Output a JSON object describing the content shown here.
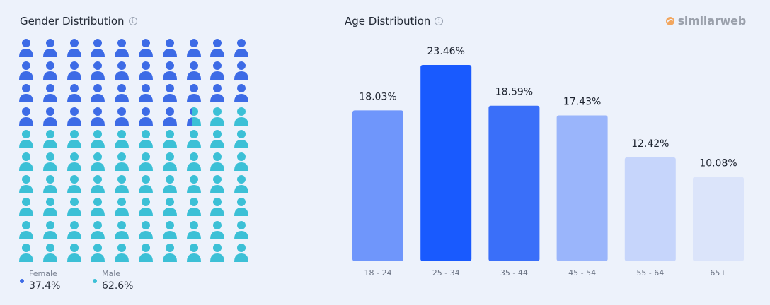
{
  "gender": {
    "title": "Gender Distribution",
    "info_icon": "info-icon",
    "legend": [
      {
        "label": "Female",
        "value": "37.4%",
        "color": "#3d6be6"
      },
      {
        "label": "Male",
        "value": "62.6%",
        "color": "#3cc0d6"
      }
    ]
  },
  "age": {
    "title": "Age Distribution",
    "info_icon": "info-icon"
  },
  "brand": {
    "name": "similarweb",
    "logo_icon": "similarweb-logo-icon"
  },
  "chart_data": [
    {
      "type": "pictogram",
      "title": "Gender Distribution",
      "icon": "person-icon",
      "icons_total": 100,
      "columns": 10,
      "series": [
        {
          "name": "Female",
          "value": 37.4,
          "color": "#3d6be6"
        },
        {
          "name": "Male",
          "value": 62.6,
          "color": "#3cc0d6"
        }
      ]
    },
    {
      "type": "bar",
      "title": "Age Distribution",
      "categories": [
        "18 - 24",
        "25 - 34",
        "35 - 44",
        "45 - 54",
        "55 - 64",
        "65+"
      ],
      "values": [
        18.03,
        23.46,
        18.59,
        17.43,
        12.42,
        10.08
      ],
      "labels": [
        "18.03%",
        "23.46%",
        "18.59%",
        "17.43%",
        "12.42%",
        "10.08%"
      ],
      "colors": [
        "#6f96fb",
        "#195afe",
        "#3a6ff9",
        "#9ab5fb",
        "#c6d5fb",
        "#dbe4fa"
      ],
      "ylim": [
        0,
        25
      ],
      "grid": false
    }
  ]
}
